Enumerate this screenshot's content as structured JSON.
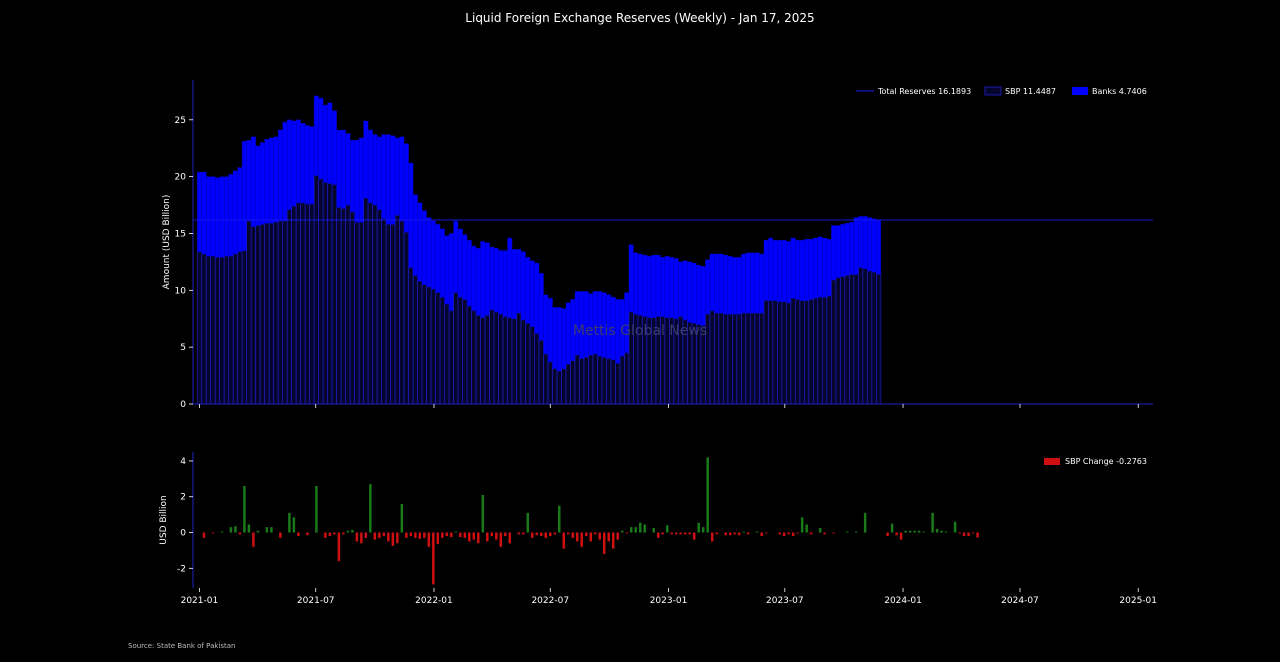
{
  "title": "Liquid Foreign Exchange Reserves (Weekly) - Jan 17, 2025",
  "source": "Source: State Bank of Pakistan",
  "watermark": "Mettis Global News",
  "colors": {
    "sbp": "#05052e",
    "sbp_edge": "#2020d0",
    "banks": "#0000ff",
    "total_line": "#1a1aee",
    "pos": "#1a7a1a",
    "neg": "#d01010",
    "axis": "#2020c0"
  },
  "chart_data": [
    {
      "type": "bar",
      "stacked": true,
      "x_label_ticks": [
        "2021-01",
        "2021-07",
        "2022-01",
        "2022-07",
        "2023-01",
        "2023-07",
        "2024-01",
        "2024-07",
        "2025-01"
      ],
      "x_start": "2021-01-01",
      "xlim": [
        "2020-12-22",
        "2025-01-24"
      ],
      "ylabel": "Amount (USD Billion)",
      "ylim": [
        0,
        28.5
      ],
      "yticks": [
        0,
        5,
        10,
        15,
        20,
        25
      ],
      "legend_position": "top-right",
      "legend": [
        "Total Reserves 16.1893",
        "SBP 11.4487",
        "Banks 4.7406"
      ],
      "reference_line_total": 16.1893,
      "series": [
        {
          "name": "SBP",
          "values": [
            13.4,
            13.2,
            13.0,
            13.0,
            12.9,
            12.9,
            13.0,
            13.0,
            13.2,
            13.4,
            13.5,
            16.1,
            15.6,
            15.7,
            15.8,
            15.9,
            15.9,
            16.0,
            16.1,
            16.1,
            17.1,
            17.4,
            17.7,
            17.7,
            17.6,
            17.6,
            20.1,
            19.8,
            19.5,
            19.4,
            19.3,
            17.3,
            17.2,
            17.5,
            16.9,
            16.0,
            16.0,
            18.1,
            17.7,
            17.5,
            17.1,
            16.3,
            15.8,
            15.8,
            16.6,
            16.1,
            15.1,
            12.0,
            11.3,
            10.8,
            10.5,
            10.3,
            10.1,
            9.8,
            9.4,
            8.8,
            8.2,
            9.8,
            9.4,
            9.2,
            8.6,
            8.2,
            7.8,
            7.6,
            7.8,
            8.3,
            8.1,
            7.9,
            7.7,
            7.6,
            7.5,
            8.0,
            7.4,
            7.1,
            6.8,
            6.2,
            5.6,
            4.4,
            3.7,
            3.1,
            2.9,
            3.1,
            3.5,
            3.8,
            4.3,
            4.0,
            4.1,
            4.3,
            4.4,
            4.2,
            4.1,
            4.0,
            3.9,
            3.6,
            4.2,
            4.5,
            8.1,
            7.9,
            7.8,
            7.7,
            7.6,
            7.6,
            7.7,
            7.7,
            7.6,
            7.6,
            7.5,
            7.7,
            7.4,
            7.2,
            7.1,
            7.0,
            6.9,
            7.9,
            8.2,
            8.0,
            8.0,
            7.9,
            7.9,
            7.9,
            7.9,
            8.0,
            8.0,
            8.0,
            8.0,
            8.0,
            9.1,
            9.1,
            9.1,
            9.0,
            9.0,
            8.9,
            9.3,
            9.2,
            9.1,
            9.1,
            9.2,
            9.3,
            9.4,
            9.4,
            9.5,
            10.9,
            11.1,
            11.2,
            11.3,
            11.4,
            11.4,
            12.0,
            11.9,
            11.7,
            11.6,
            11.4
          ]
        },
        {
          "name": "Banks",
          "values": [
            7.0,
            7.2,
            7.0,
            7.0,
            7.0,
            7.1,
            7.0,
            7.2,
            7.3,
            7.4,
            9.6,
            7.1,
            7.9,
            7.0,
            7.2,
            7.4,
            7.5,
            7.5,
            8.0,
            8.7,
            7.9,
            7.5,
            7.3,
            7.0,
            6.9,
            6.8,
            7.0,
            7.1,
            6.8,
            7.1,
            6.5,
            6.8,
            6.9,
            6.3,
            6.3,
            7.2,
            7.4,
            6.8,
            6.4,
            6.2,
            6.4,
            7.4,
            7.9,
            7.8,
            6.8,
            7.4,
            7.8,
            9.2,
            7.1,
            6.9,
            6.5,
            6.1,
            6.0,
            6.0,
            6.0,
            6.0,
            6.8,
            6.3,
            6.0,
            5.7,
            5.8,
            5.7,
            5.9,
            6.7,
            6.4,
            5.5,
            5.6,
            5.6,
            5.8,
            7.0,
            6.1,
            5.6,
            6.0,
            5.8,
            5.8,
            6.2,
            5.9,
            5.2,
            5.6,
            5.4,
            5.6,
            5.3,
            5.4,
            5.4,
            5.6,
            5.9,
            5.8,
            5.4,
            5.5,
            5.7,
            5.7,
            5.6,
            5.5,
            5.6,
            5.0,
            5.3,
            5.9,
            5.4,
            5.4,
            5.4,
            5.4,
            5.5,
            5.4,
            5.2,
            5.4,
            5.3,
            5.3,
            4.8,
            5.2,
            5.3,
            5.3,
            5.2,
            5.2,
            4.8,
            5.0,
            5.2,
            5.2,
            5.2,
            5.1,
            5.0,
            5.0,
            5.2,
            5.3,
            5.3,
            5.3,
            5.2,
            5.3,
            5.5,
            5.3,
            5.4,
            5.4,
            5.4,
            5.3,
            5.2,
            5.3,
            5.4,
            5.3,
            5.3,
            5.3,
            5.2,
            5.0,
            4.8,
            4.6,
            4.6,
            4.6,
            4.6,
            5.0,
            4.5,
            4.6,
            4.7,
            4.7,
            4.74
          ]
        }
      ]
    },
    {
      "type": "bar",
      "x_label_ticks": [
        "2021-01",
        "2021-07",
        "2022-01",
        "2022-07",
        "2023-01",
        "2023-07",
        "2024-01",
        "2024-07",
        "2025-01"
      ],
      "ylabel": "USD Billion",
      "ylim": [
        -3.1,
        4.5
      ],
      "yticks": [
        -2,
        0,
        2,
        4
      ],
      "legend_position": "top-right",
      "legend": [
        "SBP Change -0.2763"
      ],
      "series": [
        {
          "name": "SBP Change",
          "values": [
            0.0,
            -0.3,
            0.0,
            -0.05,
            0.0,
            0.05,
            0.0,
            0.3,
            0.35,
            -0.1,
            2.6,
            0.45,
            -0.8,
            0.1,
            0.0,
            0.3,
            0.3,
            0.0,
            -0.3,
            0.0,
            1.1,
            0.85,
            -0.2,
            0.0,
            -0.15,
            0.0,
            2.6,
            0.0,
            -0.3,
            -0.2,
            -0.1,
            -1.6,
            -0.1,
            0.1,
            0.15,
            -0.5,
            -0.6,
            -0.3,
            2.7,
            -0.4,
            -0.3,
            -0.2,
            -0.5,
            -0.75,
            -0.6,
            1.6,
            -0.3,
            -0.2,
            -0.3,
            -0.35,
            -0.3,
            -0.8,
            -2.9,
            -0.65,
            -0.3,
            -0.2,
            -0.25,
            0.05,
            -0.25,
            -0.3,
            -0.5,
            -0.4,
            -0.6,
            2.1,
            -0.5,
            -0.2,
            -0.4,
            -0.8,
            -0.2,
            -0.6,
            0.0,
            -0.1,
            -0.1,
            1.1,
            -0.3,
            -0.15,
            -0.2,
            -0.3,
            -0.2,
            -0.1,
            1.5,
            -0.9,
            -0.1,
            -0.3,
            -0.5,
            -0.8,
            -0.2,
            -0.5,
            -0.1,
            -0.4,
            -1.2,
            -0.5,
            -0.9,
            -0.4,
            0.1,
            -0.05,
            0.3,
            0.3,
            0.55,
            0.45,
            0.0,
            0.25,
            -0.3,
            -0.1,
            0.4,
            -0.1,
            -0.1,
            -0.1,
            -0.1,
            -0.1,
            -0.4,
            0.55,
            0.3,
            4.2,
            -0.5,
            -0.1,
            0.0,
            -0.15,
            -0.15,
            -0.1,
            -0.15,
            0.05,
            -0.1,
            0.0,
            0.05,
            -0.2,
            -0.05,
            0.0,
            0.0,
            -0.1,
            -0.2,
            -0.1,
            -0.2,
            -0.05,
            0.85,
            0.45,
            -0.1,
            0.0,
            0.25,
            -0.1,
            0.0,
            -0.05,
            0.0,
            0.0,
            0.05,
            0.0,
            0.05,
            0.0,
            1.1,
            0.0,
            0.0,
            0.0,
            0.0,
            -0.2,
            0.5,
            -0.15,
            -0.4,
            0.1,
            0.1,
            0.1,
            0.1,
            0.05,
            0.0,
            1.1,
            0.2,
            0.1,
            0.05,
            0.0,
            0.6,
            -0.05,
            -0.2,
            -0.2,
            -0.05,
            -0.28
          ]
        }
      ]
    }
  ]
}
